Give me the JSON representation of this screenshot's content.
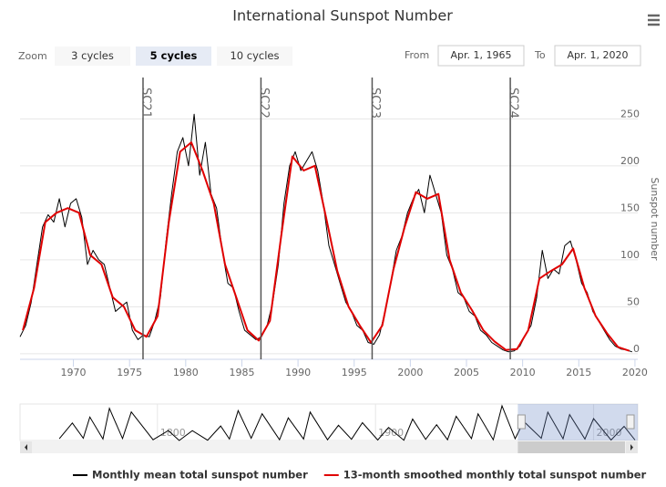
{
  "chart_data": {
    "type": "line",
    "title": "International Sunspot Number",
    "y_axis_title": "Sunspot number",
    "xlim": [
      1965.25,
      2020.25
    ],
    "ylim": [
      -6,
      294
    ],
    "xticks": [
      1970,
      1975,
      1980,
      1985,
      1990,
      1995,
      2000,
      2005,
      2010,
      2015,
      2020
    ],
    "yticks": [
      0,
      50,
      100,
      150,
      200,
      250
    ],
    "grid": true,
    "series": [
      {
        "name": "Monthly mean total sunspot number",
        "color": "#000000",
        "x": [
          1965.25,
          1965.75,
          1966.25,
          1966.75,
          1967.25,
          1967.75,
          1968.25,
          1968.75,
          1969.25,
          1969.75,
          1970.25,
          1970.75,
          1971.25,
          1971.75,
          1972.25,
          1972.75,
          1973.25,
          1973.75,
          1974.25,
          1974.75,
          1975.25,
          1975.75,
          1976.25,
          1976.75,
          1977.25,
          1977.75,
          1978.25,
          1978.75,
          1979.25,
          1979.75,
          1980.25,
          1980.75,
          1981.25,
          1981.75,
          1982.25,
          1982.75,
          1983.25,
          1983.75,
          1984.25,
          1984.75,
          1985.25,
          1985.75,
          1986.25,
          1986.75,
          1987.25,
          1987.75,
          1988.25,
          1988.75,
          1989.25,
          1989.75,
          1990.25,
          1990.75,
          1991.25,
          1991.75,
          1992.25,
          1992.75,
          1993.25,
          1993.75,
          1994.25,
          1994.75,
          1995.25,
          1995.75,
          1996.25,
          1996.75,
          1997.25,
          1997.75,
          1998.25,
          1998.75,
          1999.25,
          1999.75,
          2000.25,
          2000.75,
          2001.25,
          2001.75,
          2002.25,
          2002.75,
          2003.25,
          2003.75,
          2004.25,
          2004.75,
          2005.25,
          2005.75,
          2006.25,
          2006.75,
          2007.25,
          2007.75,
          2008.25,
          2008.75,
          2009.25,
          2009.75,
          2010.25,
          2010.75,
          2011.25,
          2011.75,
          2012.25,
          2012.75,
          2013.25,
          2013.75,
          2014.25,
          2014.75,
          2015.25,
          2015.75,
          2016.25,
          2016.75,
          2017.25,
          2017.75,
          2018.25,
          2018.75,
          2019.25,
          2019.75
        ],
        "values": [
          18,
          30,
          55,
          95,
          135,
          148,
          140,
          165,
          135,
          160,
          165,
          145,
          95,
          110,
          100,
          95,
          70,
          45,
          50,
          55,
          25,
          15,
          20,
          18,
          35,
          60,
          120,
          170,
          215,
          230,
          200,
          255,
          190,
          225,
          170,
          155,
          110,
          75,
          70,
          45,
          25,
          20,
          15,
          18,
          30,
          55,
          95,
          160,
          200,
          215,
          195,
          205,
          215,
          195,
          160,
          115,
          95,
          75,
          55,
          45,
          30,
          25,
          12,
          10,
          20,
          45,
          75,
          110,
          125,
          150,
          165,
          175,
          150,
          190,
          170,
          150,
          105,
          90,
          65,
          60,
          45,
          40,
          25,
          20,
          12,
          8,
          4,
          2,
          3,
          8,
          20,
          30,
          60,
          110,
          80,
          90,
          85,
          115,
          120,
          100,
          75,
          65,
          45,
          35,
          25,
          15,
          8,
          5,
          4,
          2
        ]
      },
      {
        "name": "13-month smoothed monthly total sunspot number",
        "color": "#e00000",
        "x": [
          1965.5,
          1966.5,
          1967.5,
          1968.5,
          1969.5,
          1970.5,
          1971.5,
          1972.5,
          1973.5,
          1974.5,
          1975.5,
          1976.5,
          1977.5,
          1978.5,
          1979.5,
          1980.5,
          1981.5,
          1982.5,
          1983.5,
          1984.5,
          1985.5,
          1986.5,
          1987.5,
          1988.5,
          1989.5,
          1990.5,
          1991.5,
          1992.5,
          1993.5,
          1994.5,
          1995.5,
          1996.5,
          1997.5,
          1998.5,
          1999.5,
          2000.5,
          2001.5,
          2002.5,
          2003.5,
          2004.5,
          2005.5,
          2006.5,
          2007.5,
          2008.5,
          2009.5,
          2010.5,
          2011.5,
          2012.5,
          2013.5,
          2014.5,
          2015.5,
          2016.5,
          2017.5,
          2018.5,
          2019.5
        ],
        "values": [
          25,
          70,
          140,
          150,
          155,
          150,
          105,
          95,
          60,
          50,
          25,
          18,
          40,
          140,
          215,
          225,
          195,
          160,
          95,
          60,
          25,
          14,
          35,
          125,
          210,
          195,
          200,
          145,
          88,
          50,
          30,
          12,
          30,
          90,
          135,
          172,
          165,
          170,
          100,
          65,
          46,
          25,
          13,
          4,
          5,
          25,
          80,
          88,
          95,
          112,
          70,
          40,
          22,
          7,
          3
        ]
      }
    ],
    "cycle_lines": [
      {
        "x": 1976.2,
        "label": "SC21"
      },
      {
        "x": 1986.7,
        "label": "SC22"
      },
      {
        "x": 1996.6,
        "label": "SC23"
      },
      {
        "x": 2008.9,
        "label": "SC24"
      }
    ]
  },
  "navigator": {
    "xlim": [
      1737,
      2020.25
    ],
    "ylim": [
      0,
      300
    ],
    "xticks": [
      1800,
      1900,
      2000
    ],
    "color": "#000000",
    "x": [
      1755,
      1761,
      1766,
      1769,
      1775,
      1778,
      1784,
      1788,
      1798,
      1805,
      1810,
      1816,
      1823,
      1829,
      1833,
      1837,
      1843,
      1848,
      1856,
      1860,
      1867,
      1870,
      1878,
      1883,
      1889,
      1894,
      1901,
      1906,
      1913,
      1917,
      1923,
      1928,
      1933,
      1937,
      1944,
      1947,
      1954,
      1958,
      1964,
      1968,
      1976,
      1979,
      1986,
      1989,
      1996,
      2000,
      2008,
      2014,
      2019
    ],
    "values": [
      14,
      144,
      19,
      193,
      12,
      264,
      16,
      235,
      6,
      82,
      0,
      81,
      2,
      119,
      12,
      245,
      18,
      220,
      6,
      186,
      12,
      234,
      6,
      125,
      10,
      146,
      4,
      107,
      2,
      176,
      9,
      130,
      6,
      199,
      16,
      219,
      6,
      285,
      15,
      157,
      18,
      233,
      14,
      213,
      12,
      180,
      4,
      116,
      4
    ]
  },
  "range_selector": {
    "zoom_label": "Zoom",
    "buttons": [
      "3 cycles",
      "5 cycles",
      "10 cycles"
    ],
    "selected": "5 cycles",
    "from_label": "From",
    "from": "Apr. 1, 1965",
    "to_label": "To",
    "to": "Apr. 1, 2020"
  }
}
